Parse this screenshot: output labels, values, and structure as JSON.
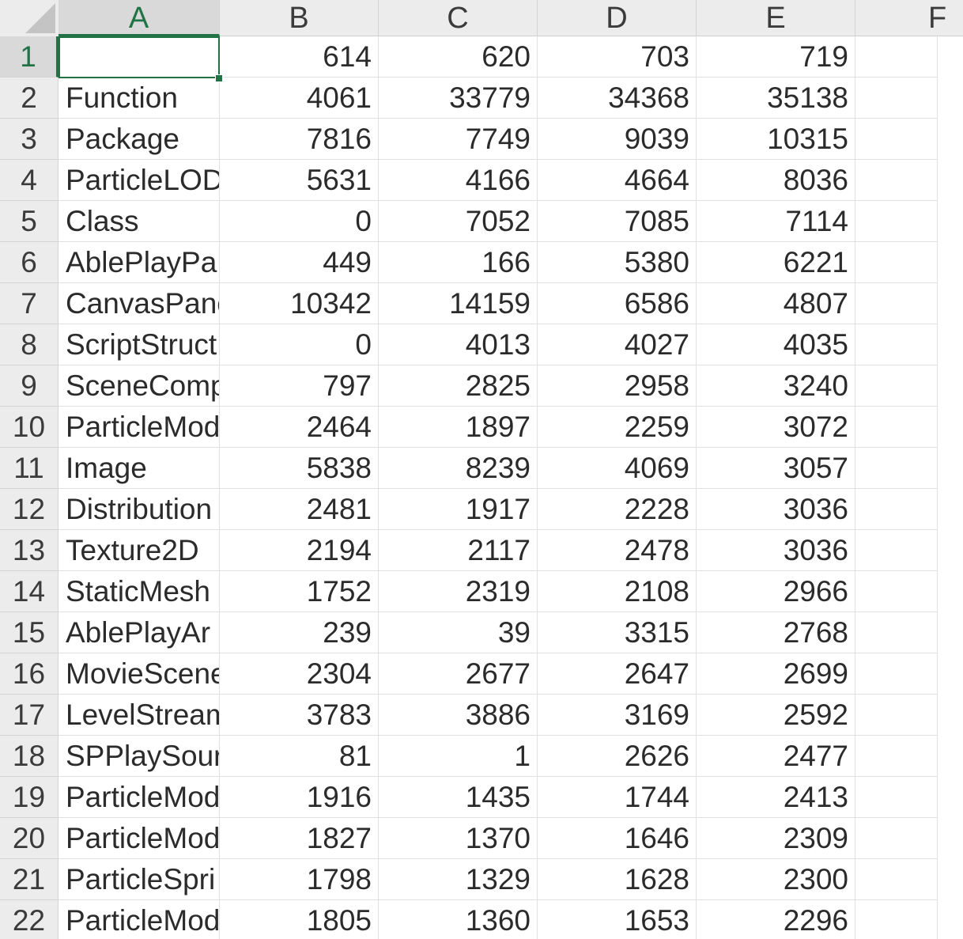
{
  "columns": [
    "A",
    "B",
    "C",
    "D",
    "E",
    "F"
  ],
  "rows": [
    {
      "n": "1",
      "a": "",
      "b": "614",
      "c": "620",
      "d": "703",
      "e": "719"
    },
    {
      "n": "2",
      "a": "Function",
      "b": "4061",
      "c": "33779",
      "d": "34368",
      "e": "35138"
    },
    {
      "n": "3",
      "a": "Package",
      "b": "7816",
      "c": "7749",
      "d": "9039",
      "e": "10315"
    },
    {
      "n": "4",
      "a": "ParticleLOD",
      "b": "5631",
      "c": "4166",
      "d": "4664",
      "e": "8036"
    },
    {
      "n": "5",
      "a": "Class",
      "b": "0",
      "c": "7052",
      "d": "7085",
      "e": "7114"
    },
    {
      "n": "6",
      "a": "AblePlayPa",
      "b": "449",
      "c": "166",
      "d": "5380",
      "e": "6221"
    },
    {
      "n": "7",
      "a": "CanvasPane",
      "b": "10342",
      "c": "14159",
      "d": "6586",
      "e": "4807"
    },
    {
      "n": "8",
      "a": "ScriptStruct",
      "b": "0",
      "c": "4013",
      "d": "4027",
      "e": "4035"
    },
    {
      "n": "9",
      "a": "SceneComp",
      "b": "797",
      "c": "2825",
      "d": "2958",
      "e": "3240"
    },
    {
      "n": "10",
      "a": "ParticleMod",
      "b": "2464",
      "c": "1897",
      "d": "2259",
      "e": "3072"
    },
    {
      "n": "11",
      "a": "Image",
      "b": "5838",
      "c": "8239",
      "d": "4069",
      "e": "3057"
    },
    {
      "n": "12",
      "a": "Distribution",
      "b": "2481",
      "c": "1917",
      "d": "2228",
      "e": "3036"
    },
    {
      "n": "13",
      "a": "Texture2D",
      "b": "2194",
      "c": "2117",
      "d": "2478",
      "e": "3036"
    },
    {
      "n": "14",
      "a": "StaticMesh",
      "b": "1752",
      "c": "2319",
      "d": "2108",
      "e": "2966"
    },
    {
      "n": "15",
      "a": "AblePlayAr",
      "b": "239",
      "c": "39",
      "d": "3315",
      "e": "2768"
    },
    {
      "n": "16",
      "a": "MovieScene",
      "b": "2304",
      "c": "2677",
      "d": "2647",
      "e": "2699"
    },
    {
      "n": "17",
      "a": "LevelStream",
      "b": "3783",
      "c": "3886",
      "d": "3169",
      "e": "2592"
    },
    {
      "n": "18",
      "a": "SPPlaySour",
      "b": "81",
      "c": "1",
      "d": "2626",
      "e": "2477"
    },
    {
      "n": "19",
      "a": "ParticleMod",
      "b": "1916",
      "c": "1435",
      "d": "1744",
      "e": "2413"
    },
    {
      "n": "20",
      "a": "ParticleMod",
      "b": "1827",
      "c": "1370",
      "d": "1646",
      "e": "2309"
    },
    {
      "n": "21",
      "a": "ParticleSpri",
      "b": "1798",
      "c": "1329",
      "d": "1628",
      "e": "2300"
    },
    {
      "n": "22",
      "a": "ParticleMod",
      "b": "1805",
      "c": "1360",
      "d": "1653",
      "e": "2296"
    }
  ],
  "selected_cell": "A1"
}
